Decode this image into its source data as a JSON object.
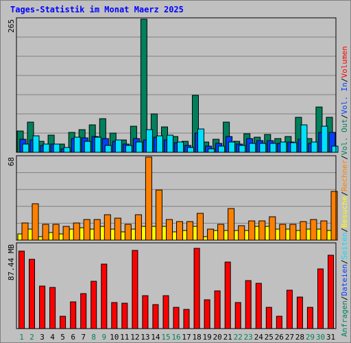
{
  "chart_data": {
    "type": "bar",
    "title": "Tages-Statistik im Monat Maerz 2025",
    "days": [
      "1",
      "2",
      "3",
      "4",
      "5",
      "6",
      "7",
      "8",
      "9",
      "10",
      "11",
      "12",
      "13",
      "14",
      "15",
      "16",
      "17",
      "18",
      "19",
      "20",
      "21",
      "22",
      "23",
      "24",
      "25",
      "26",
      "27",
      "28",
      "29",
      "30",
      "31"
    ],
    "weekend_days": [
      "1",
      "2",
      "8",
      "9",
      "15",
      "16",
      "22",
      "23",
      "29",
      "30"
    ],
    "panels": [
      {
        "id": "top",
        "ymax_label": "265",
        "ymax": 265,
        "series": [
          {
            "name": "Anfragen",
            "color": "#00805c",
            "values": [
              43,
              60,
              22,
              34,
              17,
              39,
              45,
              55,
              67,
              38,
              24,
              52,
              265,
              77,
              51,
              32,
              22,
              114,
              20,
              26,
              60,
              22,
              37,
              30,
              35,
              28,
              32,
              69,
              28,
              90,
              69
            ]
          },
          {
            "name": "Dateien",
            "color": "#0040ff",
            "values": [
              26,
              25,
              14,
              17,
              7,
              27,
              29,
              31,
              28,
              22,
              17,
              28,
              25,
              30,
              25,
              19,
              14,
              38,
              12,
              18,
              32,
              16,
              27,
              23,
              23,
              18,
              21,
              26,
              18,
              40,
              40
            ]
          },
          {
            "name": "Seiten",
            "color": "#00e0ff",
            "values": [
              17,
              33,
              17,
              17,
              9,
              30,
              22,
              30,
              13,
              24,
              13,
              20,
              45,
              33,
              34,
              20,
              9,
              46,
              7,
              12,
              20,
              14,
              18,
              18,
              18,
              20,
              19,
              55,
              20,
              52,
              12
            ]
          }
        ]
      },
      {
        "id": "middle",
        "ymax_label": "68",
        "ymax": 68,
        "series": [
          {
            "name": "Besuche",
            "color": "#ffff00",
            "values": [
              5,
              9,
              3,
              6,
              5,
              9,
              10,
              9,
              11,
              9,
              7,
              9,
              11,
              11,
              11,
              7,
              8,
              11,
              3,
              8,
              8,
              8,
              8,
              11,
              11,
              9,
              9,
              8,
              9,
              9,
              8
            ]
          },
          {
            "name": "Rechner",
            "color": "#ff8000",
            "values": [
              14,
              30,
              13,
              13,
              11,
              14,
              17,
              17,
              21,
              18,
              13,
              21,
              68,
              41,
              17,
              15,
              15,
              22,
              9,
              13,
              26,
              12,
              16,
              16,
              19,
              13,
              13,
              15,
              17,
              16,
              40
            ]
          }
        ]
      },
      {
        "id": "bottom",
        "ymax_label": "87.44 MB",
        "ymax": 87.44,
        "series": [
          {
            "name": "Volumen",
            "color": "#ff0000",
            "values": [
              80,
              72,
              44,
              43,
              13,
              28,
              36,
              49,
              67,
              27,
              26,
              81,
              34,
              25,
              34,
              22,
              20,
              83,
              30,
              39,
              69,
              27,
              50,
              47,
              22,
              13,
              40,
              33,
              22,
              62,
              76
            ]
          }
        ]
      }
    ],
    "legend": [
      {
        "text": "Anfragen",
        "color": "#00805c"
      },
      {
        "text": "/",
        "color": "#000000"
      },
      {
        "text": "Dateien",
        "color": "#0040ff"
      },
      {
        "text": "/",
        "color": "#000000"
      },
      {
        "text": "Seiten",
        "color": "#00e0ff"
      },
      {
        "text": "/",
        "color": "#000000"
      },
      {
        "text": "Besuche",
        "color": "#ffff00"
      },
      {
        "text": "/",
        "color": "#000000"
      },
      {
        "text": "Rechner",
        "color": "#ff8000"
      },
      {
        "text": "/",
        "color": "#000000"
      },
      {
        "text": "Vol. Out",
        "color": "#00805c"
      },
      {
        "text": "/",
        "color": "#000000"
      },
      {
        "text": "Vol. In",
        "color": "#0040ff"
      },
      {
        "text": "/",
        "color": "#000000"
      },
      {
        "text": "Volumen",
        "color": "#ff0000"
      }
    ],
    "colors": {
      "background": "#c0c0c0",
      "plot": "#c0c0c0",
      "title": "#0000ff",
      "weekday_label": "#000000",
      "weekend_label": "#00805c"
    }
  }
}
